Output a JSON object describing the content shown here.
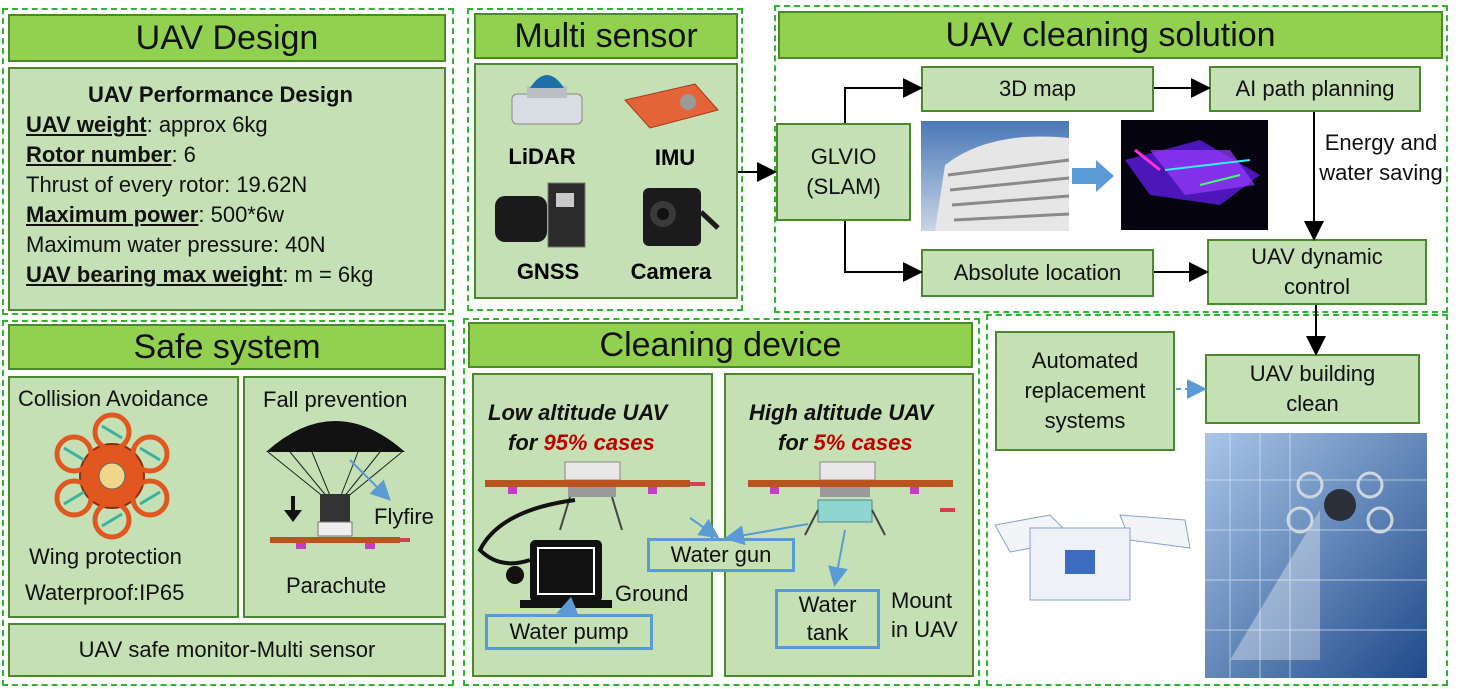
{
  "uav_design": {
    "title": "UAV Design",
    "perf_title": "UAV Performance Design",
    "weight_label": "UAV weight",
    "weight_value": ": approx 6kg",
    "rotor_label": "Rotor number",
    "rotor_value": ": 6",
    "thrust": "Thrust of every rotor: 19.62N",
    "power_label": "Maximum power",
    "power_value": ": 500*6w",
    "pressure": "Maximum water pressure: 40N",
    "bearing_label": "UAV bearing max weight",
    "bearing_value": ": m = 6kg"
  },
  "multi_sensor": {
    "title": "Multi sensor",
    "lidar": "LiDAR",
    "imu": "IMU",
    "gnss": "GNSS",
    "camera": "Camera"
  },
  "cleaning_solution": {
    "title": "UAV cleaning solution",
    "glvio": "GLVIO (SLAM)",
    "map3d": "3D map",
    "ai_path": "AI path planning",
    "energy": "Energy and water saving",
    "absolute": "Absolute location",
    "dynamic": "UAV dynamic control"
  },
  "safe_system": {
    "title": "Safe system",
    "collision": "Collision Avoidance",
    "wing": "Wing protection",
    "waterproof": "Waterproof:IP65",
    "fall": "Fall prevention",
    "flyfire": "Flyfire",
    "parachute": "Parachute",
    "monitor": "UAV safe monitor-Multi sensor"
  },
  "cleaning_device": {
    "title": "Cleaning device",
    "low_line1": "Low altitude UAV",
    "low_line2_pre": "for ",
    "low_line2_pct": "95% cases",
    "high_line1": "High altitude UAV",
    "high_line2_pre": "for ",
    "high_line2_pct": "5% cases",
    "water_gun": "Water gun",
    "ground": "Ground",
    "water_pump": "Water pump",
    "water_tank": "Water tank",
    "mount": "Mount in UAV"
  },
  "bottom_right": {
    "automated": "Automated replacement systems",
    "building_clean": "UAV building clean"
  },
  "colors": {
    "header_green": "#92d050",
    "panel_green": "#c5e0b4",
    "dash_green": "#2fb52f",
    "accent_red": "#c00000",
    "accent_blue": "#5b9bd5"
  }
}
